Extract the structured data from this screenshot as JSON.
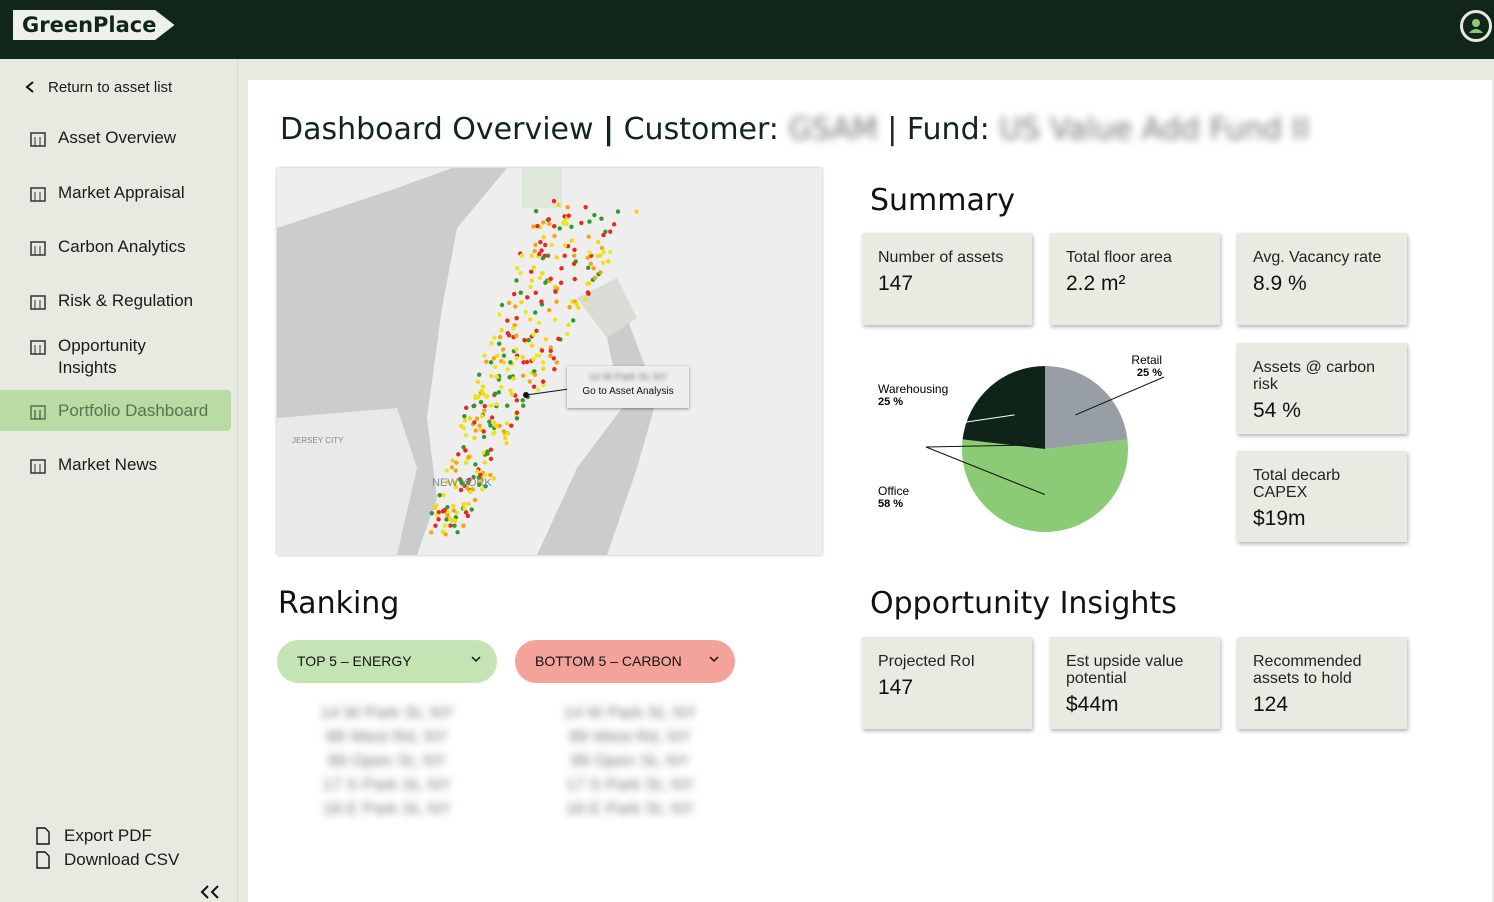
{
  "header": {
    "brand": "GreenPlace"
  },
  "sidebar": {
    "back": "Return to asset list",
    "items": [
      "Asset Overview",
      "Market Appraisal",
      "Carbon Analytics",
      "Risk & Regulation",
      "Opportunity Insights",
      "Portfolio Dashboard",
      "Market News"
    ],
    "footer": [
      "Export PDF",
      "Download CSV"
    ]
  },
  "dashboard": {
    "title": "Dashboard Overview",
    "customer_label": "Customer:",
    "customer": "GSAM",
    "fund_label": "Fund:",
    "fund": "US Value Add Fund II"
  },
  "map": {
    "labels": [
      "JERSEY CITY",
      "NEW YORK"
    ],
    "tooltip": {
      "address": "14 W Park St, NY",
      "action": "Go to Asset Analysis"
    }
  },
  "summary": {
    "title": "Summary",
    "cards": [
      {
        "label": "Number of assets",
        "value": "147"
      },
      {
        "label": "Total floor area",
        "value": "2.2 m²"
      },
      {
        "label": "Avg. Vacancy rate",
        "value": "8.9 %"
      },
      {
        "label": "Assets @ carbon risk",
        "value": "54 %"
      },
      {
        "label": "Total decarb CAPEX",
        "value": "$19m"
      }
    ]
  },
  "chart_data": {
    "type": "pie",
    "categories": [
      "Retail",
      "Office",
      "Warehousing"
    ],
    "values": [
      25,
      58,
      25
    ],
    "value_labels": [
      "25 %",
      "58 %",
      "25 %"
    ],
    "colors": [
      "#979ea6",
      "#8bcb76",
      "#0f2418"
    ]
  },
  "ranking": {
    "title": "Ranking",
    "lists": [
      {
        "name": "TOP 5 – ENERGY",
        "items": [
          "14 W Park St, NY",
          "89 West Rd, NY",
          "99 Open St, NY",
          "17 S Park St, NY",
          "18 E Park St, NY"
        ]
      },
      {
        "name": "BOTTOM 5 – CARBON",
        "items": [
          "14 W Park St, NY",
          "89 West Rd, NY",
          "99 Open St, NY",
          "17 S Park St, NY",
          "18 E Park St, NY"
        ]
      }
    ]
  },
  "opportunity": {
    "title": "Opportunity Insights",
    "cards": [
      {
        "label": "Projected RoI",
        "value": "147"
      },
      {
        "label": "Est upside value potential",
        "value": "$44m"
      },
      {
        "label": "Recommended assets to hold",
        "value": "124"
      }
    ]
  }
}
